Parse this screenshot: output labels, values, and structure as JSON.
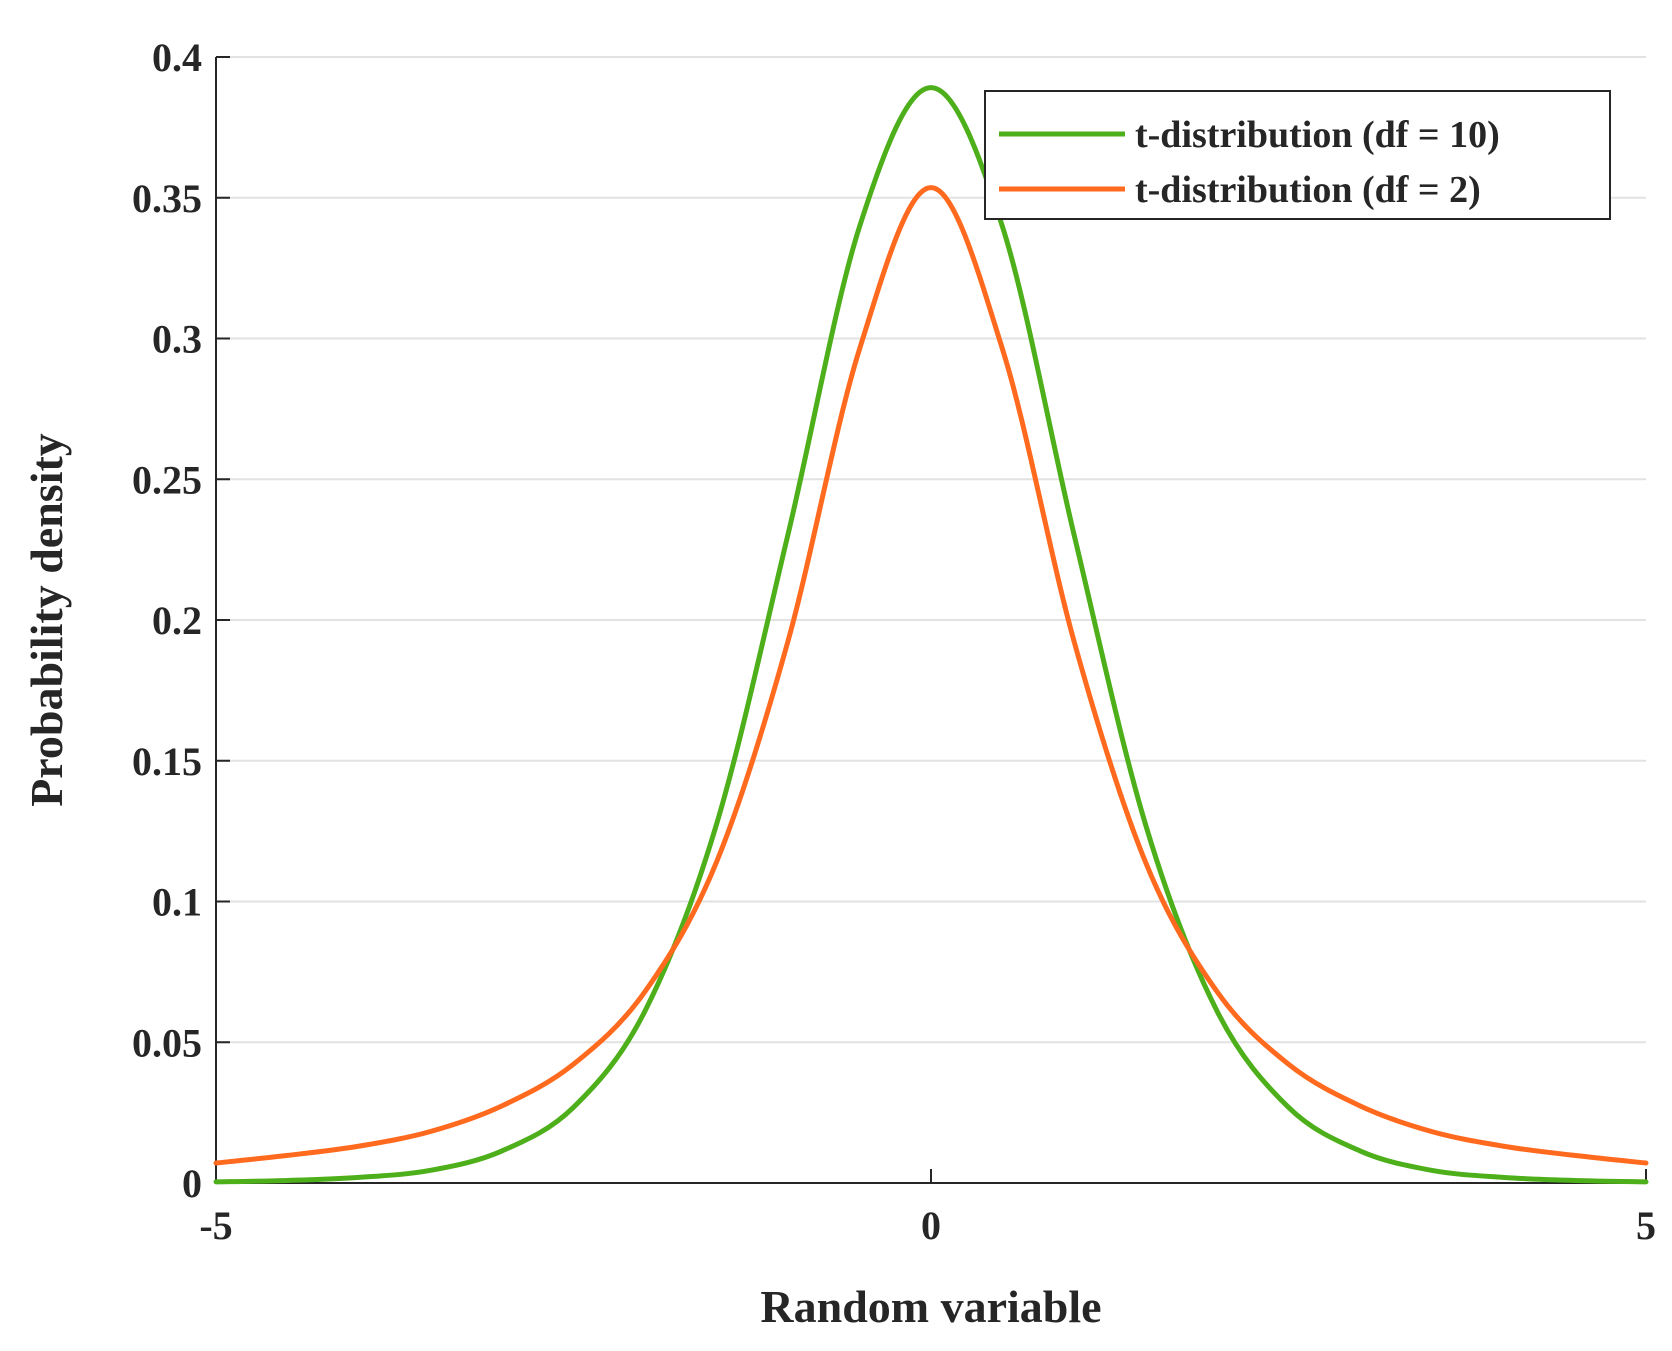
{
  "chart_data": {
    "type": "line",
    "title": "",
    "xlabel": "Random variable",
    "ylabel": "Probability density",
    "xlim": [
      -5,
      5
    ],
    "ylim": [
      0,
      0.4
    ],
    "xticks": [
      -5,
      0,
      5
    ],
    "xtick_labels": [
      "-5",
      "0",
      "5"
    ],
    "yticks": [
      0,
      0.05,
      0.1,
      0.15,
      0.2,
      0.25,
      0.3,
      0.35,
      0.4
    ],
    "ytick_labels": [
      "0",
      "0.05",
      "0.1",
      "0.15",
      "0.2",
      "0.25",
      "0.3",
      "0.35",
      "0.4"
    ],
    "grid": "horizontal",
    "legend_position": "top-right",
    "x": [
      -5,
      -4.5,
      -4,
      -3.5,
      -3,
      -2.5,
      -2,
      -1.5,
      -1,
      -0.5,
      0,
      0.5,
      1,
      1.5,
      2,
      2.5,
      3,
      3.5,
      4,
      4.5,
      5
    ],
    "series": [
      {
        "name": "t-distribution (df = 10)",
        "color": "#4daf1a",
        "values": [
          0.0004,
          0.0009,
          0.002,
          0.0045,
          0.0114,
          0.0269,
          0.0611,
          0.1274,
          0.2304,
          0.3397,
          0.3891,
          0.3397,
          0.2304,
          0.1274,
          0.0611,
          0.0269,
          0.0114,
          0.0045,
          0.002,
          0.0009,
          0.0004
        ]
      },
      {
        "name": "t-distribution (df = 2)",
        "color": "#ff6a1f",
        "values": [
          0.0071,
          0.0098,
          0.0131,
          0.0183,
          0.0274,
          0.0422,
          0.068,
          0.114,
          0.1925,
          0.2962,
          0.3536,
          0.2962,
          0.1925,
          0.114,
          0.068,
          0.0422,
          0.0274,
          0.0183,
          0.0131,
          0.0098,
          0.0071
        ]
      }
    ]
  }
}
